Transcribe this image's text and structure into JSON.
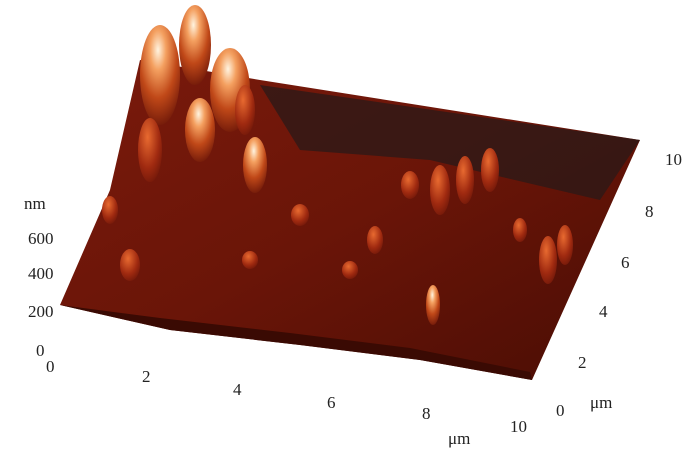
{
  "z_axis": {
    "unit": "nm",
    "ticks": [
      "0",
      "200",
      "400",
      "600"
    ]
  },
  "x_axis": {
    "unit": "μm",
    "ticks": [
      "0",
      "2",
      "4",
      "6",
      "8",
      "10"
    ]
  },
  "y_axis": {
    "unit": "μm",
    "ticks": [
      "0",
      "2",
      "4",
      "6",
      "8",
      "10"
    ]
  }
}
